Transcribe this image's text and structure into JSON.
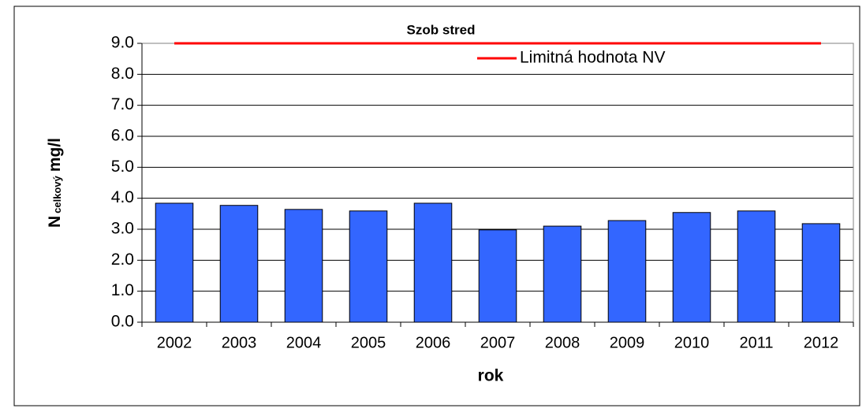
{
  "chart_data": {
    "type": "bar",
    "title": "Szob stred",
    "x_label": "rok",
    "y_label": "N",
    "y_label_sub": "celkový",
    "y_label_unit": "mg/l",
    "categories": [
      "2002",
      "2003",
      "2004",
      "2005",
      "2006",
      "2007",
      "2008",
      "2009",
      "2010",
      "2011",
      "2012"
    ],
    "values": [
      3.84,
      3.77,
      3.64,
      3.59,
      3.84,
      2.98,
      3.1,
      3.28,
      3.54,
      3.59,
      3.18
    ],
    "color": "#3366ff",
    "lines": [
      {
        "name": "Limitná hodnota NV",
        "color": "#ff0000",
        "values": [
          9,
          9,
          9,
          9,
          9,
          9,
          9,
          9,
          9,
          9,
          9
        ]
      }
    ],
    "ylim": [
      0,
      9
    ],
    "yticks": [
      {
        "value": 0,
        "label": "0.0"
      },
      {
        "value": 1,
        "label": "1.0"
      },
      {
        "value": 2,
        "label": "2.0"
      },
      {
        "value": 3,
        "label": "3.0"
      },
      {
        "value": 4,
        "label": "4.0"
      },
      {
        "value": 5,
        "label": "5.0"
      },
      {
        "value": 6,
        "label": "6.0"
      },
      {
        "value": 7,
        "label": "7.0"
      },
      {
        "value": 8,
        "label": "8.0"
      },
      {
        "value": 9,
        "label": "9.0"
      }
    ],
    "grid": true,
    "legend": "top-right"
  }
}
